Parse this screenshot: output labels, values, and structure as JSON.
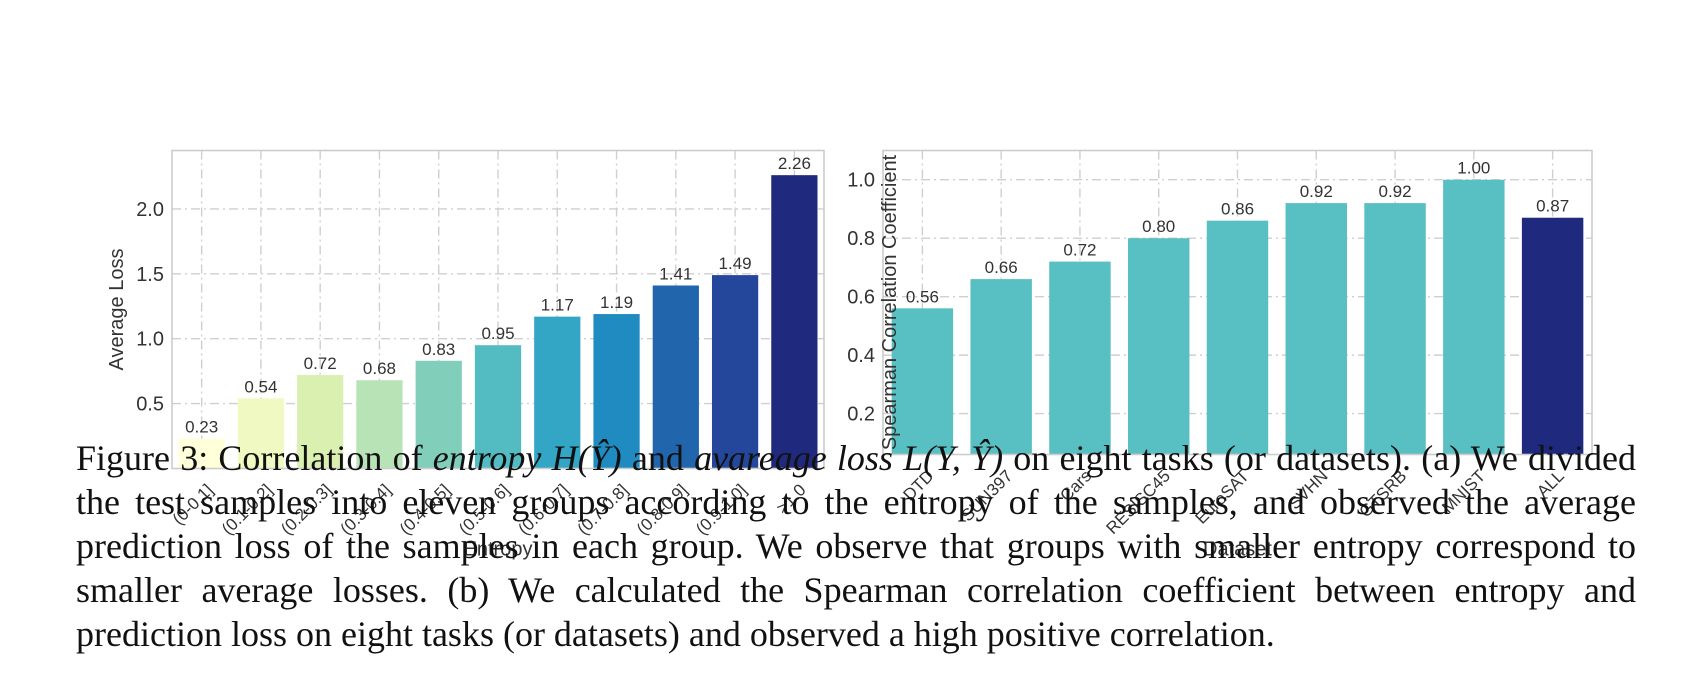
{
  "chart_data": [
    {
      "type": "bar",
      "xlabel": "Entropy",
      "ylabel": "Average Loss",
      "categories": [
        "(0-0.1]",
        "(0.1-0.2]",
        "(0.2-0.3]",
        "(0.3-0.4]",
        "(0.4-0.5]",
        "(0.5-0.6]",
        "(0.6-0.7]",
        "(0.7-0.8]",
        "(0.8-0.9]",
        "(0.9-1.0]",
        ">1.0"
      ],
      "values": [
        0.23,
        0.54,
        0.72,
        0.68,
        0.83,
        0.95,
        1.17,
        1.19,
        1.41,
        1.49,
        2.26
      ],
      "data_labels": [
        "0.23",
        "0.54",
        "0.72",
        "0.68",
        "0.83",
        "0.95",
        "1.17",
        "1.19",
        "1.41",
        "1.49",
        "2.26"
      ],
      "yticks": [
        "0.5",
        "1.0",
        "1.5",
        "2.0"
      ],
      "ylim": [
        0.0,
        2.45
      ],
      "grid": true,
      "colors": [
        "#ffffd9",
        "#f0f9c1",
        "#d9f0b1",
        "#b8e3b6",
        "#81cebb",
        "#53bcc2",
        "#33a6c6",
        "#1f8bc0",
        "#2166ac",
        "#24479b",
        "#1f2a7e"
      ]
    },
    {
      "type": "bar",
      "xlabel": "Dataset",
      "ylabel": "Spearman Correlation Coefficient",
      "categories": [
        "DTD",
        "SUN397",
        "Cars",
        "RESISC45",
        "EuroSAT",
        "SVHN",
        "GTSRB",
        "MNIST",
        "ALL"
      ],
      "values": [
        0.56,
        0.66,
        0.72,
        0.8,
        0.86,
        0.92,
        0.92,
        1.0,
        0.87
      ],
      "data_labels": [
        "0.56",
        "0.66",
        "0.72",
        "0.80",
        "0.86",
        "0.92",
        "0.92",
        "1.00",
        "0.87"
      ],
      "yticks": [
        "0.2",
        "0.4",
        "0.6",
        "0.8",
        "1.0"
      ],
      "ylim": [
        0.06,
        1.1
      ],
      "grid": true,
      "colors": [
        "#58bfc2",
        "#58bfc2",
        "#58bfc2",
        "#58bfc2",
        "#58bfc2",
        "#58bfc2",
        "#58bfc2",
        "#58bfc2",
        "#1f2a7e"
      ]
    }
  ],
  "caption": {
    "label": "Figure 3: Correlation of",
    "term1": "entropy",
    "math1": "H(Ŷ)",
    "and": "and",
    "term2": "avareage loss",
    "math2": "L(Y, Ŷ)",
    "rest": "on eight tasks (or datasets). (a) We divided the test samples into eleven groups according to the entropy of the samples, and observed the average prediction loss of the samples in each group. We observe that groups with smaller entropy correspond to smaller average losses. (b) We calculated the Spearman correlation coefficient between entropy and prediction loss on eight tasks (or datasets) and observed a high positive correlation."
  }
}
